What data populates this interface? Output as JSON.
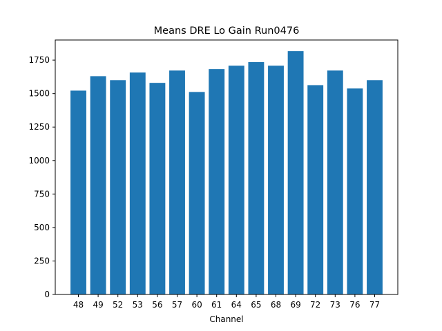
{
  "chart_data": {
    "type": "bar",
    "title": "Means DRE Lo Gain Run0476",
    "xlabel": "Channel",
    "ylabel": "",
    "categories": [
      "48",
      "49",
      "52",
      "53",
      "56",
      "57",
      "60",
      "61",
      "64",
      "65",
      "68",
      "69",
      "72",
      "73",
      "76",
      "77"
    ],
    "values": [
      1522,
      1630,
      1600,
      1657,
      1580,
      1672,
      1512,
      1683,
      1708,
      1735,
      1708,
      1817,
      1563,
      1672,
      1538,
      1600
    ],
    "ylim": [
      0,
      1900
    ],
    "yticks": [
      0,
      250,
      500,
      750,
      1000,
      1250,
      1500,
      1750
    ],
    "bar_color": "#1f77b4",
    "grid": false
  }
}
